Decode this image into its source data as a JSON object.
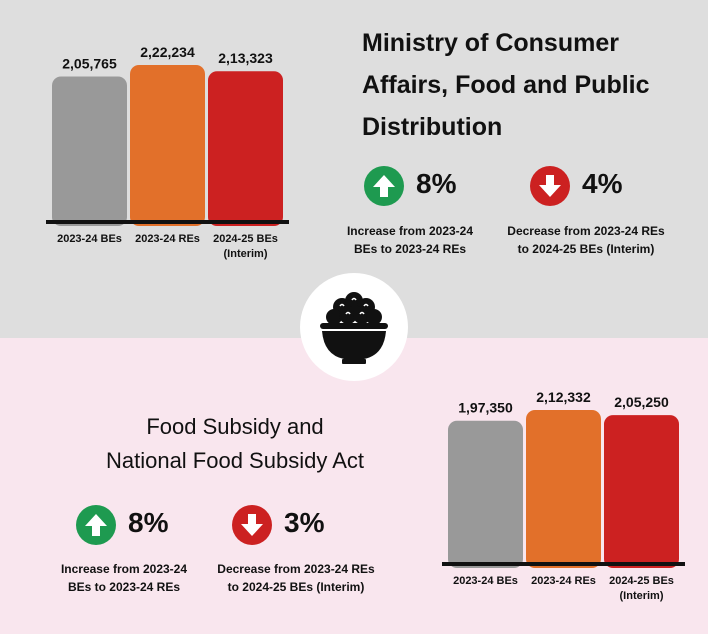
{
  "ministry": {
    "title_lines": [
      "Ministry of Consumer",
      "Affairs, Food and Public",
      "Distribution"
    ],
    "kpi_increase": {
      "direction": "up",
      "value": "8%",
      "note_lines": [
        "Increase from 2023-24",
        "BEs to 2023-24 REs"
      ]
    },
    "kpi_decrease": {
      "direction": "down",
      "value": "4%",
      "note_lines": [
        "Decrease from 2023-24 REs",
        "to 2024-25 BEs (Interim)"
      ]
    }
  },
  "food_subsidy": {
    "title_lines": [
      "Food Subsidy and",
      "National Food Subsidy Act"
    ],
    "kpi_increase": {
      "direction": "up",
      "value": "8%",
      "note_lines": [
        "Increase from 2023-24",
        "BEs to 2023-24 REs"
      ]
    },
    "kpi_decrease": {
      "direction": "down",
      "value": "3%",
      "note_lines": [
        "Decrease from 2023-24 REs",
        "to 2024-25 BEs (Interim)"
      ]
    }
  },
  "icons": {
    "center": "rice-bowl-icon",
    "up": "arrow-up-icon",
    "down": "arrow-down-icon"
  },
  "colors": {
    "gray": "#999999",
    "orange": "#e2702a",
    "red": "#cc2121",
    "green": "#1e9a50",
    "panel_top": "#dedede",
    "panel_bottom": "#f9e6ee"
  },
  "chart_data": [
    {
      "type": "bar",
      "title": "Ministry of Consumer Affairs, Food and Public Distribution",
      "categories": [
        [
          "2023-24 BEs"
        ],
        [
          "2023-24 REs"
        ],
        [
          "2024-25 BEs",
          "(Interim)"
        ]
      ],
      "values": [
        205765,
        222234,
        213323
      ],
      "value_labels": [
        "2,05,765",
        "2,22,234",
        "2,13,323"
      ],
      "bar_colors": [
        "#999999",
        "#e2702a",
        "#cc2121"
      ],
      "ylim": [
        0,
        222234
      ]
    },
    {
      "type": "bar",
      "title": "Food Subsidy and National Food Subsidy Act",
      "categories": [
        [
          "2023-24 BEs"
        ],
        [
          "2023-24 REs"
        ],
        [
          "2024-25 BEs",
          "(Interim)"
        ]
      ],
      "values": [
        197350,
        212332,
        205250
      ],
      "value_labels": [
        "1,97,350",
        "2,12,332",
        "2,05,250"
      ],
      "bar_colors": [
        "#999999",
        "#e2702a",
        "#cc2121"
      ],
      "ylim": [
        0,
        212332
      ]
    }
  ]
}
